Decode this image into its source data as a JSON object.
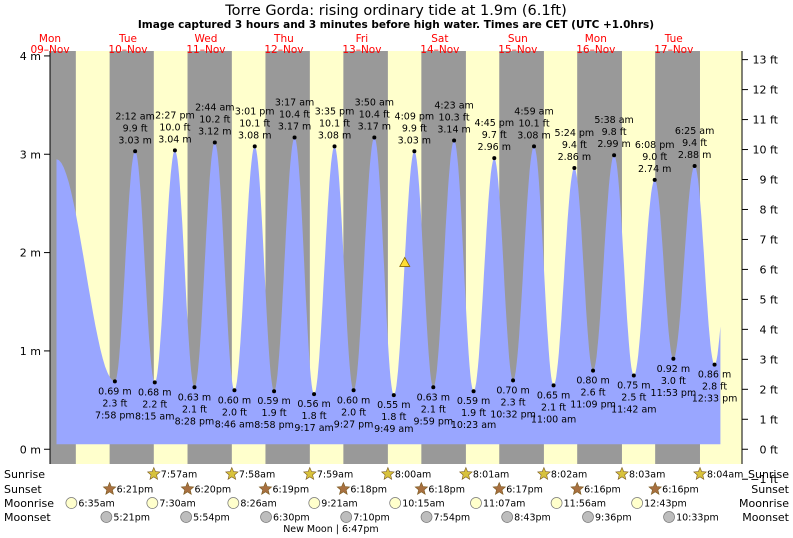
{
  "chart_data": {
    "type": "area",
    "title": "Torre Gorda: rising  ordinary tide at 1.9m (6.1ft)",
    "subtitle": "Image captured 3 hours and 3 minutes before high water. Times are CET (UTC +1.0hrs)",
    "days": [
      {
        "dow": "Mon",
        "date": "09–Nov"
      },
      {
        "dow": "Tue",
        "date": "10–Nov"
      },
      {
        "dow": "Wed",
        "date": "11–Nov"
      },
      {
        "dow": "Thu",
        "date": "12–Nov"
      },
      {
        "dow": "Fri",
        "date": "13–Nov"
      },
      {
        "dow": "Sat",
        "date": "14–Nov"
      },
      {
        "dow": "Sun",
        "date": "15–Nov"
      },
      {
        "dow": "Mon",
        "date": "16–Nov"
      },
      {
        "dow": "Tue",
        "date": "17–Nov"
      }
    ],
    "y_left": {
      "unit": "m",
      "range": [
        -0.15,
        4.05
      ],
      "ticks": [
        "4 m",
        "3 m",
        "2 m",
        "1 m",
        "0 m"
      ],
      "tick_values": [
        4,
        3,
        2,
        1,
        0
      ]
    },
    "y_right": {
      "unit": "ft",
      "ticks": [
        "13 ft",
        "12 ft",
        "11 ft",
        "10 ft",
        "9 ft",
        "8 ft",
        "7 ft",
        "6 ft",
        "5 ft",
        "4 ft",
        "3 ft",
        "2 ft",
        "1 ft",
        "0 ft",
        "−1 ft"
      ],
      "tick_values": [
        13,
        12,
        11,
        10,
        9,
        8,
        7,
        6,
        5,
        4,
        3,
        2,
        1,
        0,
        -1
      ]
    },
    "x_range_hours": [
      0,
      213
    ],
    "start_level_m": 2.95,
    "extremes": [
      {
        "kind": "low",
        "time": "7:58 pm",
        "m": "0.69 m",
        "ft": "2.3 ft",
        "t": 19.97,
        "h": 0.69
      },
      {
        "kind": "high",
        "time": "2:12 am",
        "m": "3.03 m",
        "ft": "9.9 ft",
        "t": 26.2,
        "h": 3.03
      },
      {
        "kind": "low",
        "time": "8:15 am",
        "m": "0.68 m",
        "ft": "2.2 ft",
        "t": 32.25,
        "h": 0.68
      },
      {
        "kind": "high",
        "time": "2:27 pm",
        "m": "3.04 m",
        "ft": "10.0 ft",
        "t": 38.45,
        "h": 3.04
      },
      {
        "kind": "low",
        "time": "8:28 pm",
        "m": "0.63 m",
        "ft": "2.1 ft",
        "t": 44.47,
        "h": 0.63
      },
      {
        "kind": "high",
        "time": "2:44 am",
        "m": "3.12 m",
        "ft": "10.2 ft",
        "t": 50.73,
        "h": 3.12
      },
      {
        "kind": "low",
        "time": "8:46 am",
        "m": "0.60 m",
        "ft": "2.0 ft",
        "t": 56.77,
        "h": 0.6
      },
      {
        "kind": "high",
        "time": "3:01 pm",
        "m": "3.08 m",
        "ft": "10.1 ft",
        "t": 63.02,
        "h": 3.08
      },
      {
        "kind": "low",
        "time": "8:58 pm",
        "m": "0.59 m",
        "ft": "1.9 ft",
        "t": 68.97,
        "h": 0.59
      },
      {
        "kind": "high",
        "time": "3:17 am",
        "m": "3.17 m",
        "ft": "10.4 ft",
        "t": 75.28,
        "h": 3.17
      },
      {
        "kind": "low",
        "time": "9:17 am",
        "m": "0.56 m",
        "ft": "1.8 ft",
        "t": 81.28,
        "h": 0.56
      },
      {
        "kind": "high",
        "time": "3:35 pm",
        "m": "3.08 m",
        "ft": "10.1 ft",
        "t": 87.58,
        "h": 3.08
      },
      {
        "kind": "low",
        "time": "9:27 pm",
        "m": "0.60 m",
        "ft": "2.0 ft",
        "t": 93.45,
        "h": 0.6
      },
      {
        "kind": "high",
        "time": "3:50 am",
        "m": "3.17 m",
        "ft": "10.4 ft",
        "t": 99.83,
        "h": 3.17
      },
      {
        "kind": "low",
        "time": "9:49 am",
        "m": "0.55 m",
        "ft": "1.8 ft",
        "t": 105.82,
        "h": 0.55
      },
      {
        "kind": "high",
        "time": "4:09 pm",
        "m": "3.03 m",
        "ft": "9.9 ft",
        "t": 112.15,
        "h": 3.03
      },
      {
        "kind": "low",
        "time": "9:59 pm",
        "m": "0.63 m",
        "ft": "2.1 ft",
        "t": 117.98,
        "h": 0.63
      },
      {
        "kind": "high",
        "time": "4:23 am",
        "m": "3.14 m",
        "ft": "10.3 ft",
        "t": 124.38,
        "h": 3.14
      },
      {
        "kind": "low",
        "time": "10:23 am",
        "m": "0.59 m",
        "ft": "1.9 ft",
        "t": 130.38,
        "h": 0.59
      },
      {
        "kind": "high",
        "time": "4:45 pm",
        "m": "2.96 m",
        "ft": "9.7 ft",
        "t": 136.75,
        "h": 2.96
      },
      {
        "kind": "low",
        "time": "10:32 pm",
        "m": "0.70 m",
        "ft": "2.3 ft",
        "t": 142.53,
        "h": 0.7
      },
      {
        "kind": "high",
        "time": "4:59 am",
        "m": "3.08 m",
        "ft": "10.1 ft",
        "t": 148.98,
        "h": 3.08
      },
      {
        "kind": "low",
        "time": "11:00 am",
        "m": "0.65 m",
        "ft": "2.1 ft",
        "t": 155.0,
        "h": 0.65
      },
      {
        "kind": "high",
        "time": "5:24 pm",
        "m": "2.86 m",
        "ft": "9.4 ft",
        "t": 161.4,
        "h": 2.86
      },
      {
        "kind": "low",
        "time": "11:09 pm",
        "m": "0.80 m",
        "ft": "2.6 ft",
        "t": 167.15,
        "h": 0.8
      },
      {
        "kind": "high",
        "time": "5:38 am",
        "m": "2.99 m",
        "ft": "9.8 ft",
        "t": 173.63,
        "h": 2.99
      },
      {
        "kind": "low",
        "time": "11:42 am",
        "m": "0.75 m",
        "ft": "2.5 ft",
        "t": 179.7,
        "h": 0.75
      },
      {
        "kind": "high",
        "time": "6:08 pm",
        "m": "2.74 m",
        "ft": "9.0 ft",
        "t": 186.13,
        "h": 2.74
      },
      {
        "kind": "low",
        "time": "11:53 pm",
        "m": "0.92 m",
        "ft": "3.0 ft",
        "t": 191.88,
        "h": 0.92
      },
      {
        "kind": "high",
        "time": "6:25 am",
        "m": "2.88 m",
        "ft": "9.4 ft",
        "t": 198.42,
        "h": 2.88
      },
      {
        "kind": "low",
        "time": "12:33 pm",
        "m": "0.86 m",
        "ft": "2.8 ft",
        "t": 204.55,
        "h": 0.86
      }
    ],
    "current_marker": {
      "t": 109.2,
      "h": 1.9
    },
    "nights": [
      [
        0,
        7.95
      ],
      [
        18.35,
        31.95
      ],
      [
        42.33,
        55.97
      ],
      [
        66.32,
        79.98
      ],
      [
        90.3,
        104.0
      ],
      [
        114.3,
        128.02
      ],
      [
        138.28,
        152.03
      ],
      [
        162.27,
        176.05
      ],
      [
        186.27,
        200.07
      ]
    ],
    "sunrise": {
      "label": "Sunrise",
      "times": [
        {
          "t": 31.95,
          "text": "7:57am"
        },
        {
          "t": 55.97,
          "text": "7:58am"
        },
        {
          "t": 79.98,
          "text": "7:59am"
        },
        {
          "t": 104.0,
          "text": "8:00am"
        },
        {
          "t": 128.02,
          "text": "8:01am"
        },
        {
          "t": 152.03,
          "text": "8:02am"
        },
        {
          "t": 176.05,
          "text": "8:03am"
        },
        {
          "t": 200.07,
          "text": "8:04am"
        }
      ]
    },
    "sunset": {
      "label": "Sunset",
      "times": [
        {
          "t": 18.35,
          "text": "6:21pm"
        },
        {
          "t": 42.33,
          "text": "6:20pm"
        },
        {
          "t": 66.32,
          "text": "6:19pm"
        },
        {
          "t": 90.3,
          "text": "6:18pm"
        },
        {
          "t": 114.3,
          "text": "6:18pm"
        },
        {
          "t": 138.28,
          "text": "6:17pm"
        },
        {
          "t": 162.27,
          "text": "6:16pm"
        },
        {
          "t": 186.27,
          "text": "6:16pm"
        }
      ]
    },
    "moonrise": {
      "label": "Moonrise",
      "times": [
        {
          "t": 6.58,
          "text": "6:35am"
        },
        {
          "t": 31.5,
          "text": "7:30am"
        },
        {
          "t": 56.43,
          "text": "8:26am"
        },
        {
          "t": 81.35,
          "text": "9:21am"
        },
        {
          "t": 106.25,
          "text": "10:15am"
        },
        {
          "t": 131.12,
          "text": "11:07am"
        },
        {
          "t": 155.93,
          "text": "11:56am"
        },
        {
          "t": 180.72,
          "text": "12:43pm"
        }
      ]
    },
    "moonset": {
      "label": "Moonset",
      "times": [
        {
          "t": 17.35,
          "text": "5:21pm"
        },
        {
          "t": 41.9,
          "text": "5:54pm"
        },
        {
          "t": 66.5,
          "text": "6:30pm"
        },
        {
          "t": 91.17,
          "text": "7:10pm"
        },
        {
          "t": 115.9,
          "text": "7:54pm"
        },
        {
          "t": 140.72,
          "text": "8:43pm"
        },
        {
          "t": 165.6,
          "text": "9:36pm"
        },
        {
          "t": 190.55,
          "text": "10:33pm"
        }
      ]
    },
    "new_moon": {
      "t": 90.78,
      "text": "New Moon | 6:47pm"
    }
  },
  "colors": {
    "day": "#ffffcc",
    "night": "#999999",
    "water": "#99a6ff",
    "day_label": "#ff0000",
    "sun_icon": "#d8c23c",
    "sunset_icon": "#a87040",
    "moonrise_icon": "#ffffcc",
    "moonset_icon": "#bdbdbd",
    "marker": "#ffdd33"
  }
}
